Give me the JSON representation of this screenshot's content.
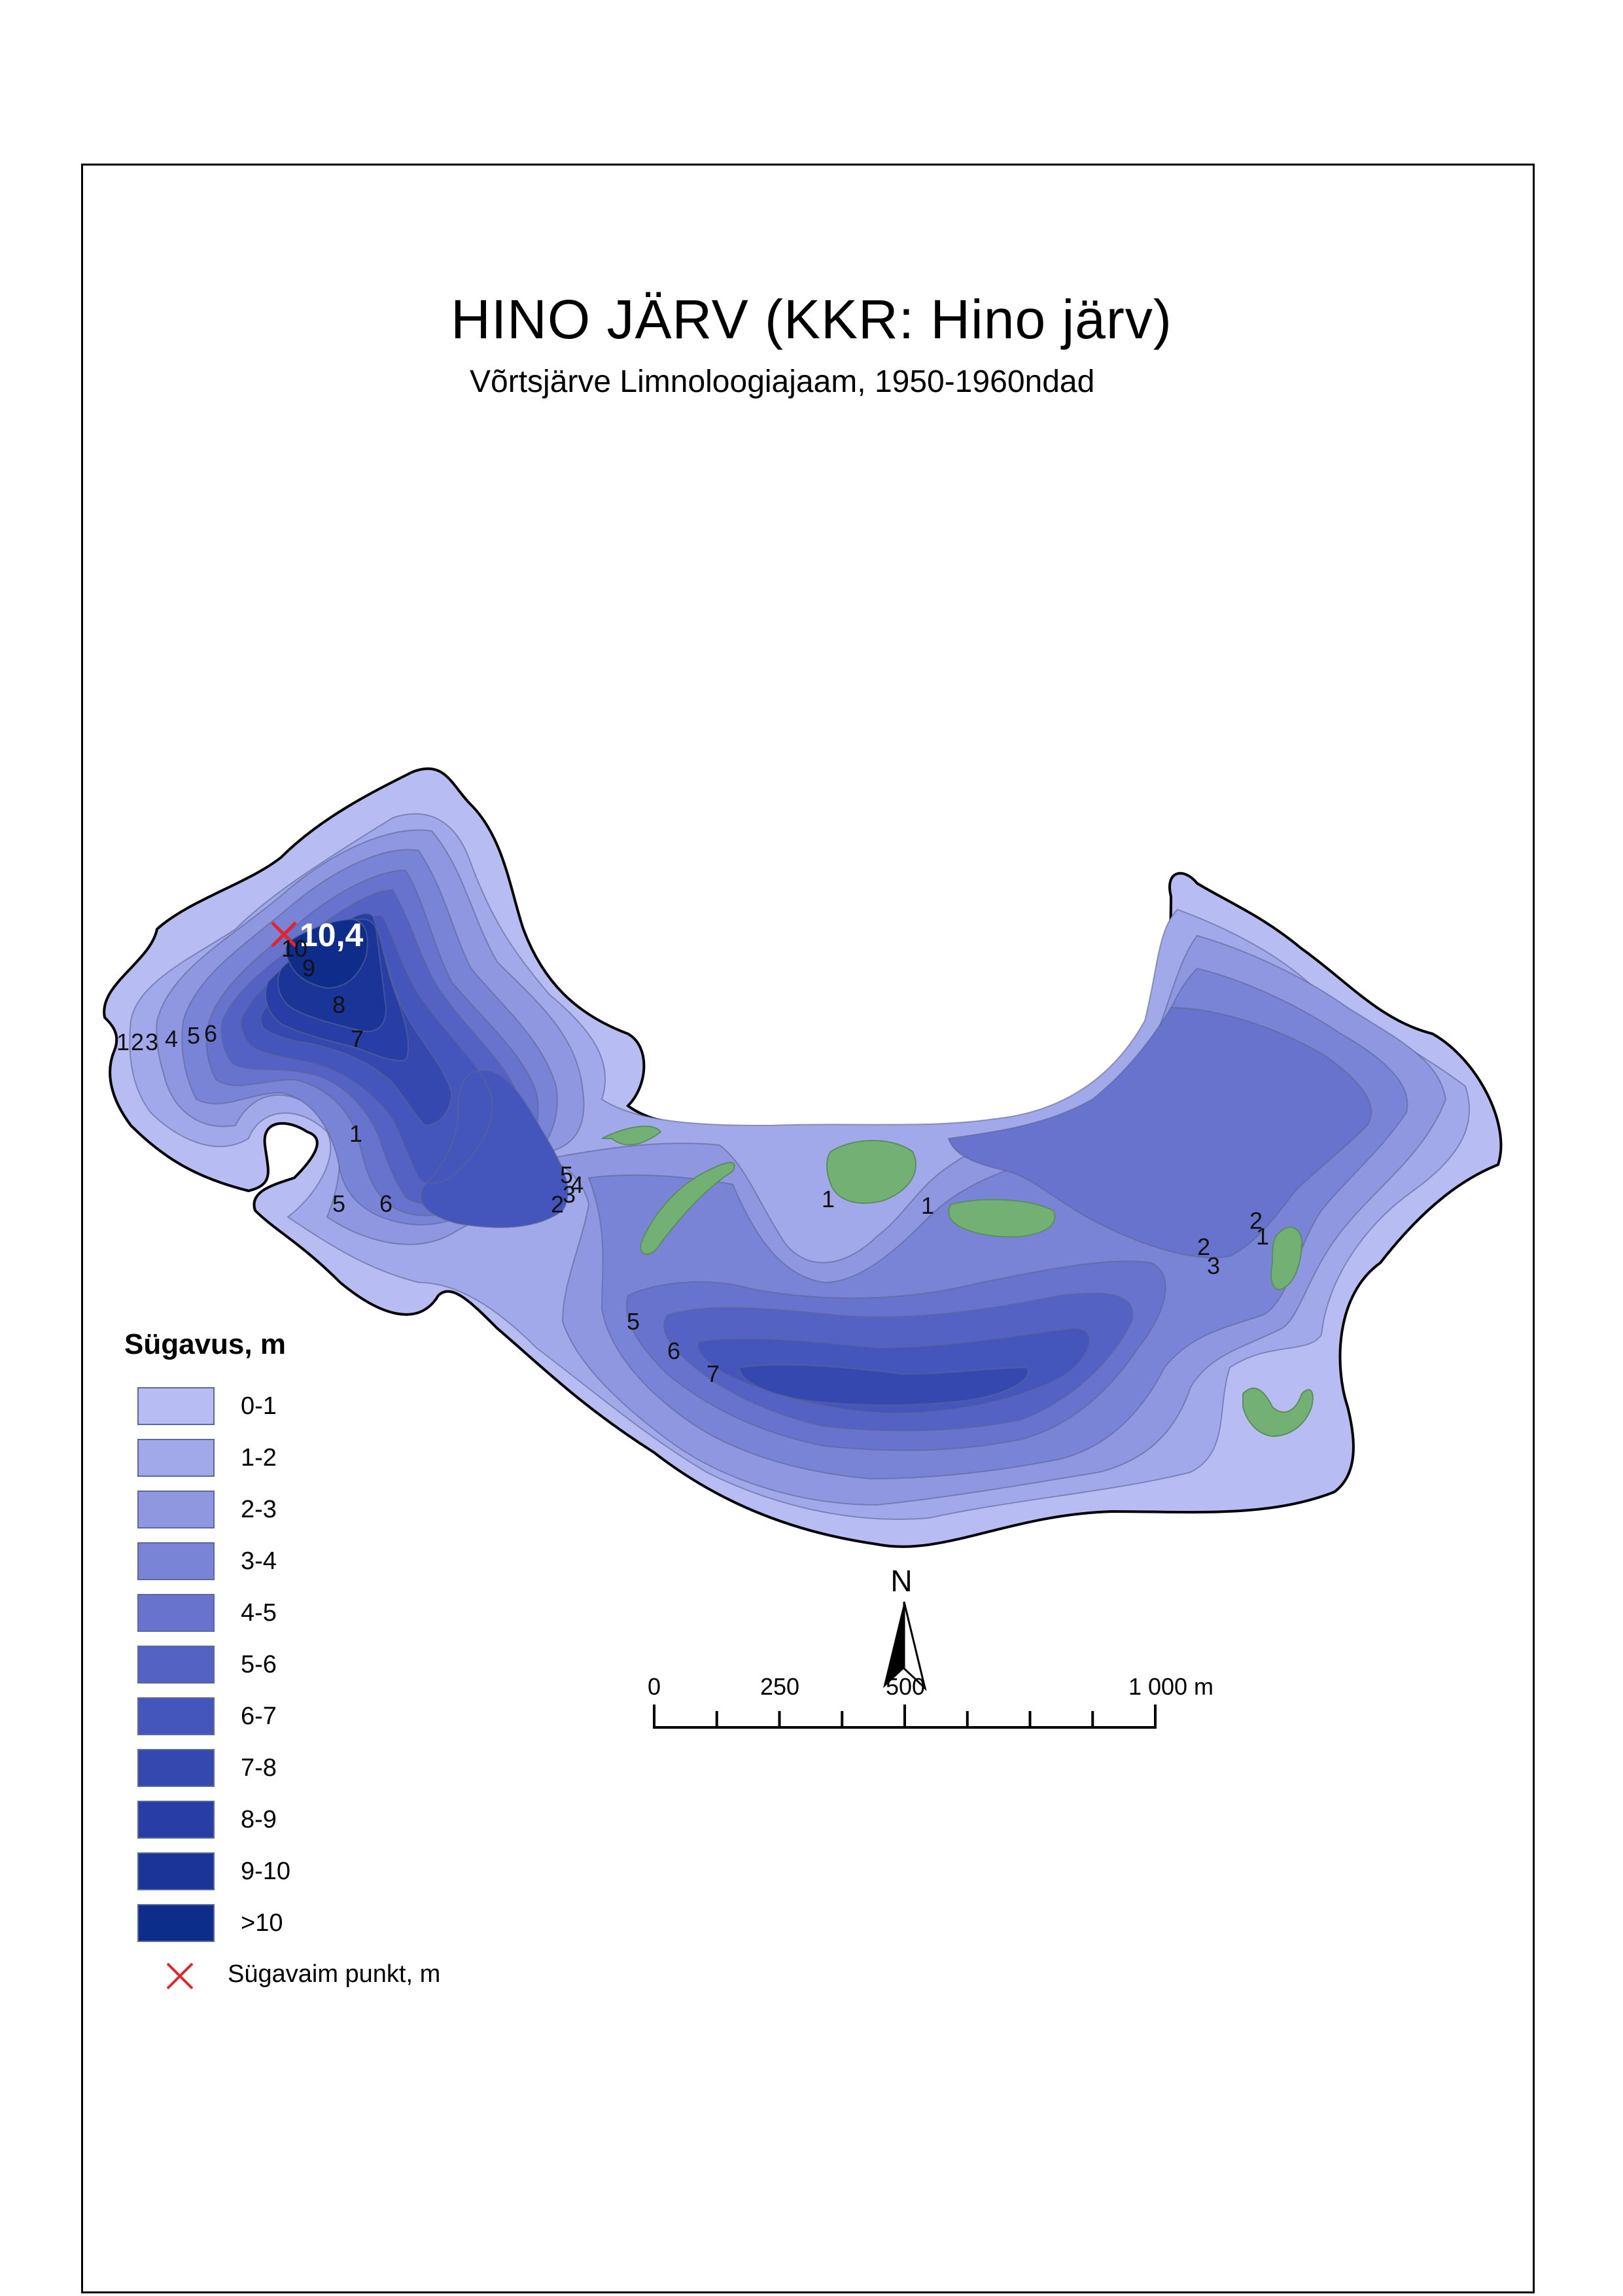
{
  "map": {
    "title": "HINO JÄRV (KKR: Hino järv)",
    "subtitle": "Võrtsjärve Limnoloogiajaam, 1950-1960ndad",
    "deepest_point_label": "10,4",
    "contour_labels": [
      {
        "text": "10"
      },
      {
        "text": "9"
      },
      {
        "text": "8"
      },
      {
        "text": "7"
      },
      {
        "text": "1"
      },
      {
        "text": "2"
      },
      {
        "text": "3"
      },
      {
        "text": "4"
      },
      {
        "text": "5"
      },
      {
        "text": "6"
      },
      {
        "text": "1"
      },
      {
        "text": "5"
      },
      {
        "text": "6"
      },
      {
        "text": "5"
      },
      {
        "text": "4"
      },
      {
        "text": "3"
      },
      {
        "text": "2"
      },
      {
        "text": "1"
      },
      {
        "text": "1"
      },
      {
        "text": "2"
      },
      {
        "text": "1"
      },
      {
        "text": "2"
      },
      {
        "text": "3"
      },
      {
        "text": "5"
      },
      {
        "text": "6"
      },
      {
        "text": "7"
      }
    ]
  },
  "legend": {
    "title": "Sügavus, m",
    "classes": [
      {
        "label": "0-1",
        "color": "#b7bdf2"
      },
      {
        "label": "1-2",
        "color": "#a2a9ea"
      },
      {
        "label": "2-3",
        "color": "#8e97e0"
      },
      {
        "label": "3-4",
        "color": "#7a84d6"
      },
      {
        "label": "4-5",
        "color": "#6773cd"
      },
      {
        "label": "5-6",
        "color": "#5462c4"
      },
      {
        "label": "6-7",
        "color": "#4455bb"
      },
      {
        "label": "7-8",
        "color": "#3548b0"
      },
      {
        "label": "8-9",
        "color": "#283ea6"
      },
      {
        "label": "9-10",
        "color": "#1a3597"
      },
      {
        "label": ">10",
        "color": "#0e2c8a"
      }
    ],
    "deepest_point": {
      "label": "Sügavaim punkt, m",
      "color": "#e3242b"
    }
  },
  "island_color": "#72b074",
  "north_arrow": {
    "label": "N"
  },
  "scale_bar": {
    "labels": [
      "0",
      "250",
      "500",
      "1 000 m"
    ]
  }
}
